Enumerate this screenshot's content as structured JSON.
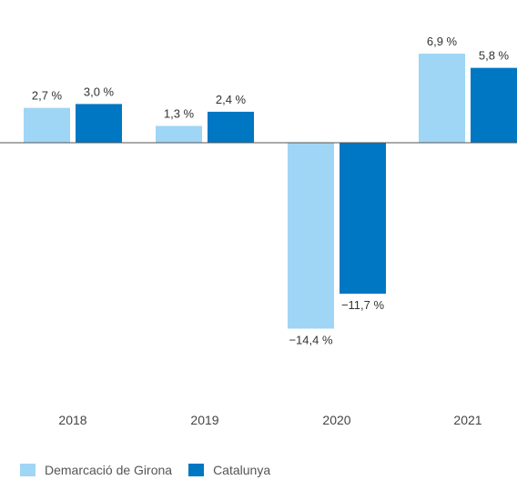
{
  "colors": {
    "girona": "#9fd5f5",
    "catalunya": "#0077c2",
    "axis": "#555555"
  },
  "chart_data": {
    "type": "bar",
    "categories": [
      "2018",
      "2019",
      "2020",
      "2021"
    ],
    "series": [
      {
        "name": "Demarcació de Girona",
        "values": [
          2.7,
          1.3,
          -14.4,
          6.9
        ],
        "labels": [
          "2,7 %",
          "1,3 %",
          "−14,4 %",
          "6,9 %"
        ]
      },
      {
        "name": "Catalunya",
        "values": [
          3.0,
          2.4,
          -11.7,
          5.8
        ],
        "labels": [
          "3,0 %",
          "2,4 %",
          "−11,7 %",
          "5,8 %"
        ]
      }
    ],
    "title": "",
    "xlabel": "",
    "ylabel": "",
    "ylim": [
      -16,
      8
    ],
    "grid": false,
    "legend": "bottom-left"
  }
}
